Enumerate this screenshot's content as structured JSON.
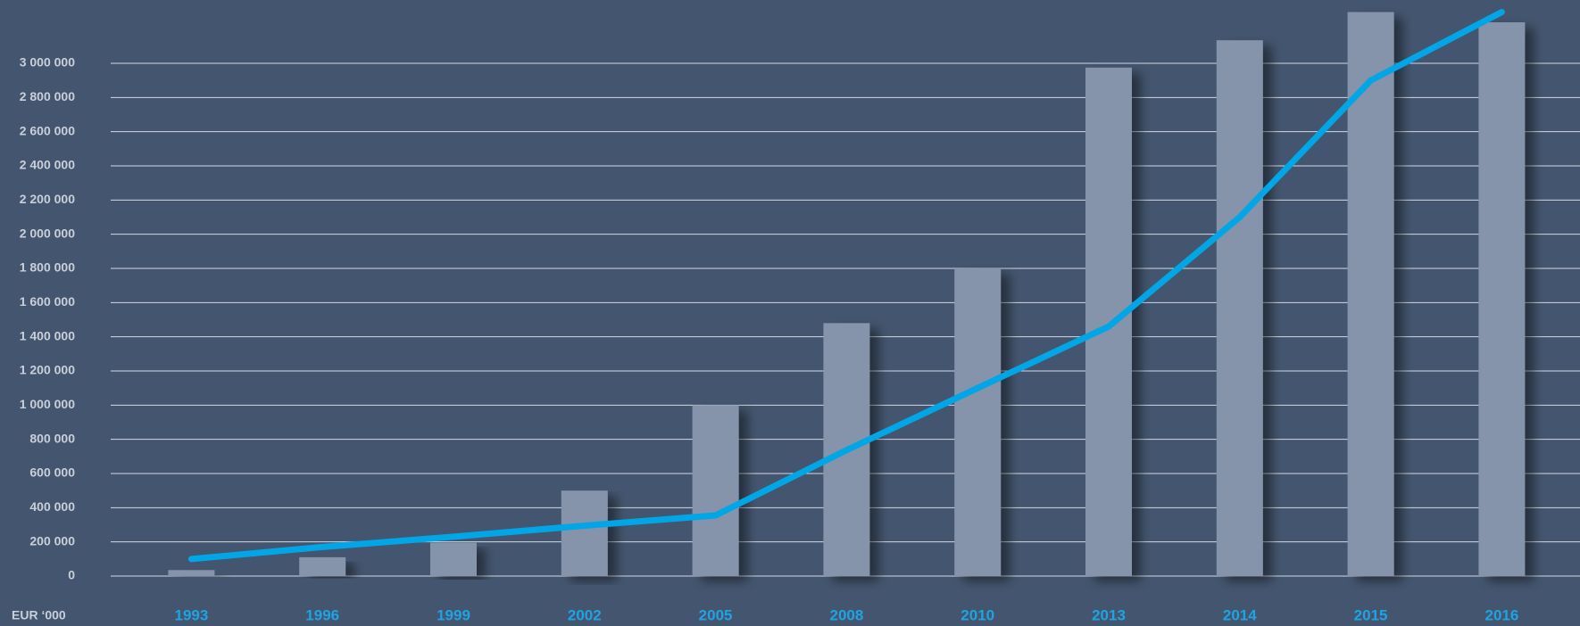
{
  "chart_data": {
    "type": "bar",
    "axis_label": "EUR ‘000",
    "categories": [
      "1993",
      "1996",
      "1999",
      "2002",
      "2005",
      "2008",
      "2010",
      "2013",
      "2014",
      "2015",
      "2016"
    ],
    "series": [
      {
        "type": "bar",
        "color": "#8593ab",
        "values": [
          35000,
          110000,
          195000,
          500000,
          1000000,
          1480000,
          1800000,
          2975000,
          3135000,
          3300000,
          3240000
        ]
      },
      {
        "type": "line",
        "color": "#00a6e6",
        "values": [
          100000,
          170000,
          230000,
          295000,
          355000,
          737000,
          1100000,
          1460000,
          2100000,
          2900000,
          3300000
        ]
      }
    ],
    "ylim": [
      0,
      3300000
    ],
    "yticks": [
      {
        "value": 0,
        "label": "0"
      },
      {
        "value": 200000,
        "label": "200 000"
      },
      {
        "value": 400000,
        "label": "400 000"
      },
      {
        "value": 600000,
        "label": "600 000"
      },
      {
        "value": 800000,
        "label": "800 000"
      },
      {
        "value": 1000000,
        "label": "1 000 000"
      },
      {
        "value": 1200000,
        "label": "1 200 000"
      },
      {
        "value": 1400000,
        "label": "1 400 000"
      },
      {
        "value": 1600000,
        "label": "1 600 000"
      },
      {
        "value": 1800000,
        "label": "1 800 000"
      },
      {
        "value": 2000000,
        "label": "2 000 000"
      },
      {
        "value": 2200000,
        "label": "2 200 000"
      },
      {
        "value": 2400000,
        "label": "2 400 000"
      },
      {
        "value": 2600000,
        "label": "2 600 000"
      },
      {
        "value": 2800000,
        "label": "2 800 000"
      },
      {
        "value": 3000000,
        "label": "3 000 000"
      }
    ],
    "grid": true
  }
}
